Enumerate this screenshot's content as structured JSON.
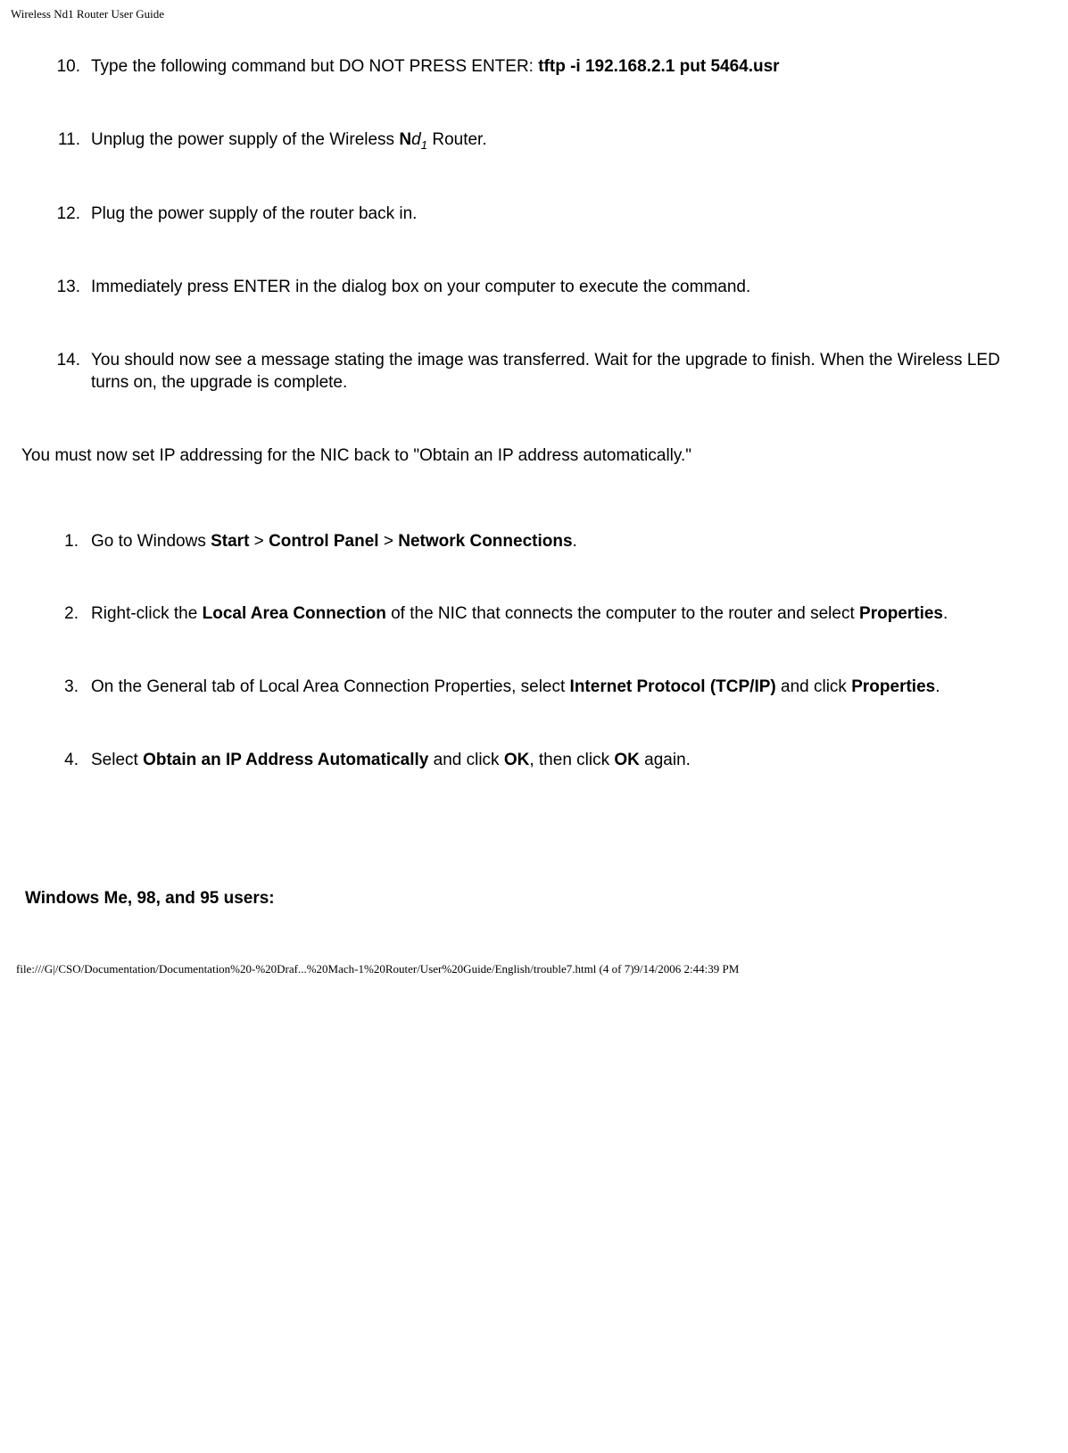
{
  "header": "Wireless Nd1 Router User Guide",
  "steps": [
    {
      "num": "10.",
      "parts": [
        {
          "t": "Type the following command but DO NOT PRESS ENTER: "
        },
        {
          "t": "tftp -i 192.168.2.1 put 5464.usr",
          "b": true
        }
      ]
    },
    {
      "num": "11.",
      "parts": [
        {
          "t": "Unplug the power supply of the Wireless "
        },
        {
          "t": "N",
          "b": true
        },
        {
          "t": "d",
          "i": true
        },
        {
          "t": "1",
          "i": true,
          "sub": true
        },
        {
          "t": " Router."
        }
      ]
    },
    {
      "num": "12.",
      "parts": [
        {
          "t": "Plug the power supply of the router back in."
        }
      ]
    },
    {
      "num": "13.",
      "parts": [
        {
          "t": "Immediately press ENTER in the dialog box on your computer to execute the command."
        }
      ]
    },
    {
      "num": "14.",
      "parts": [
        {
          "t": "You should now see a message stating the image was transferred. Wait for the upgrade to finish. When the Wireless LED turns on, the upgrade is complete."
        }
      ]
    }
  ],
  "paragraph": "You must now set IP addressing for the NIC back to \"Obtain an IP address automatically.\"",
  "steps2": [
    {
      "num": "1.",
      "parts": [
        {
          "t": "Go to Windows "
        },
        {
          "t": "Start",
          "b": true
        },
        {
          "t": " > "
        },
        {
          "t": "Control Panel",
          "b": true
        },
        {
          "t": " > "
        },
        {
          "t": "Network Connections",
          "b": true
        },
        {
          "t": "."
        }
      ]
    },
    {
      "num": "2.",
      "parts": [
        {
          "t": "Right-click the "
        },
        {
          "t": "Local Area Connection",
          "b": true
        },
        {
          "t": " of the NIC that connects the computer to the router and select "
        },
        {
          "t": "Properties",
          "b": true
        },
        {
          "t": "."
        }
      ]
    },
    {
      "num": "3.",
      "parts": [
        {
          "t": "On the General tab of Local Area Connection Properties, select "
        },
        {
          "t": "Internet Protocol (TCP/IP)",
          "b": true
        },
        {
          "t": " and click "
        },
        {
          "t": "Properties",
          "b": true
        },
        {
          "t": "."
        }
      ]
    },
    {
      "num": "4.",
      "parts": [
        {
          "t": "Select "
        },
        {
          "t": "Obtain an IP Address Automatically",
          "b": true
        },
        {
          "t": " and click "
        },
        {
          "t": "OK",
          "b": true
        },
        {
          "t": ", then click "
        },
        {
          "t": "OK",
          "b": true
        },
        {
          "t": " again."
        }
      ]
    }
  ],
  "sectionHead": "Windows Me, 98, and 95 users:",
  "footer": "file:///G|/CSO/Documentation/Documentation%20-%20Draf...%20Mach-1%20Router/User%20Guide/English/trouble7.html (4 of 7)9/14/2006 2:44:39 PM"
}
